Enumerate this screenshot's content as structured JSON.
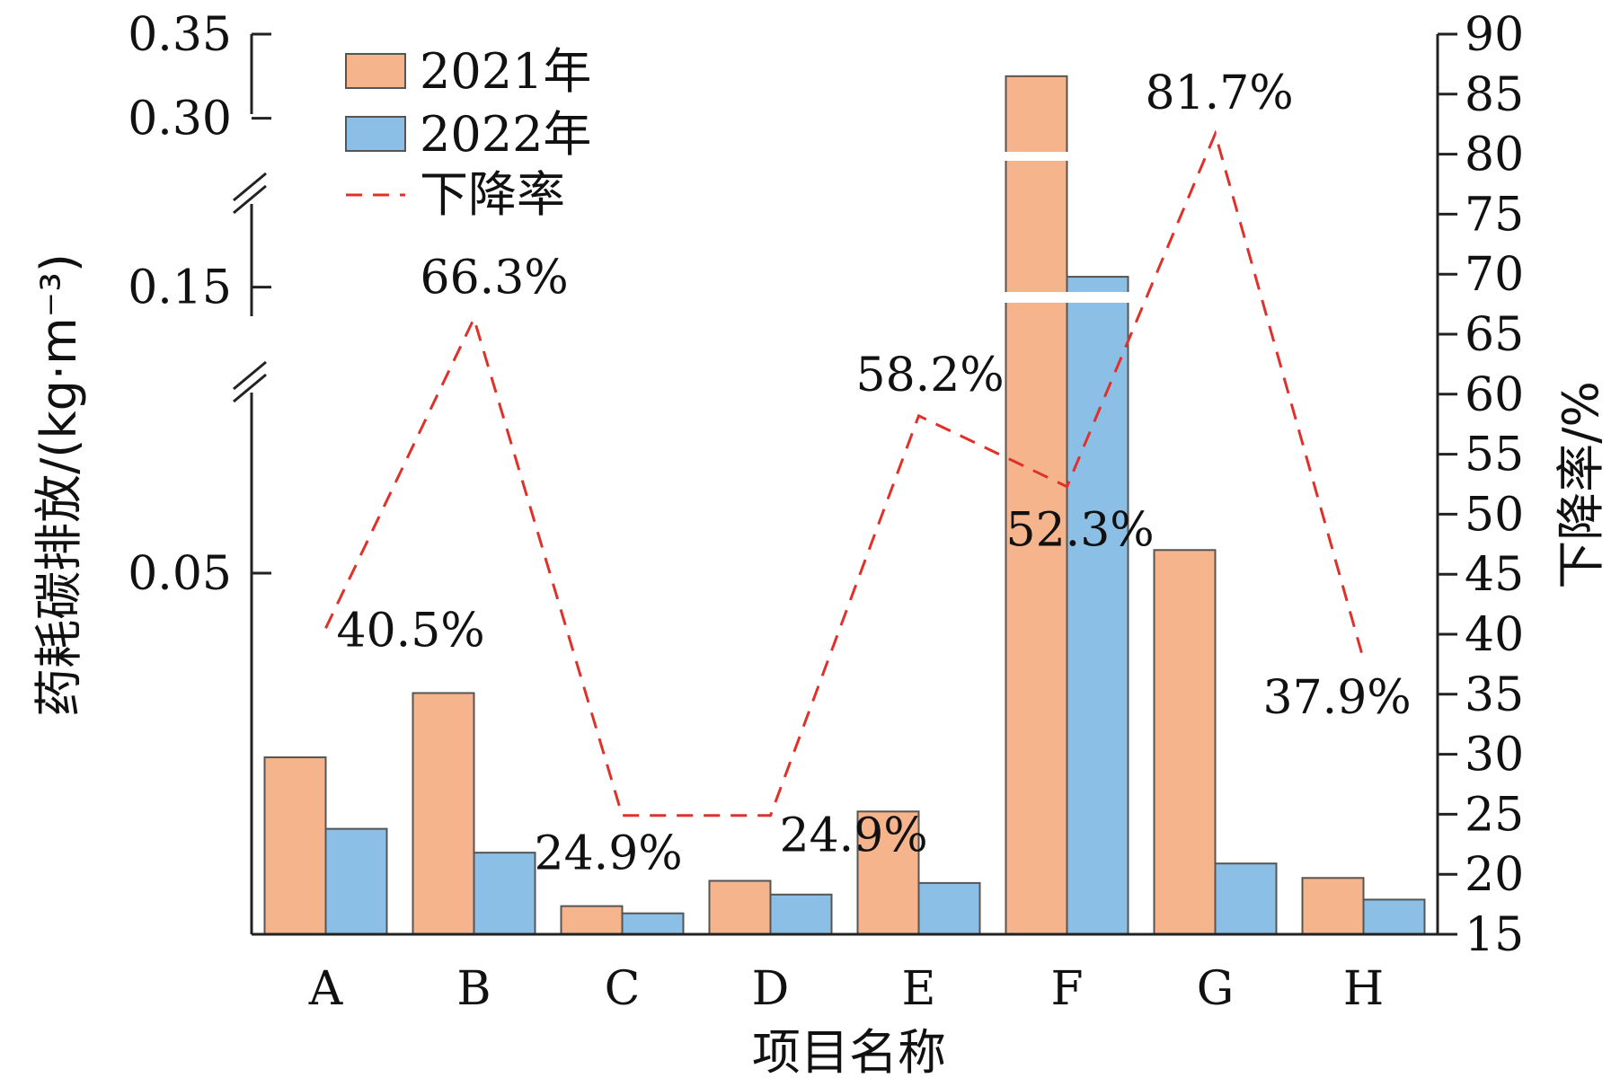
{
  "chart_data": {
    "type": "bar",
    "categories": [
      "A",
      "B",
      "C",
      "D",
      "E",
      "F",
      "G",
      "H"
    ],
    "series": [
      {
        "name": "2021年",
        "color": "#f5b48c",
        "values": [
          0.0245,
          0.0334,
          0.0039,
          0.0074,
          0.017,
          0.325,
          0.0532,
          0.0078
        ]
      },
      {
        "name": "2022年",
        "color": "#8bbfe6",
        "values": [
          0.0146,
          0.0113,
          0.0029,
          0.0055,
          0.0071,
          0.155,
          0.0098,
          0.0048
        ]
      }
    ],
    "rate": {
      "name": "下降率",
      "color": "#e0302a",
      "values": [
        40.5,
        66.3,
        24.9,
        24.9,
        58.2,
        52.3,
        81.7,
        37.9
      ],
      "labels": [
        "40.5%",
        "66.3%",
        "24.9%",
        "24.9%",
        "58.2%",
        "52.3%",
        "81.7%",
        "37.9%"
      ]
    },
    "xlabel": "项目名称",
    "ylabel": "药耗碳排放/(kg·m⁻³)",
    "y2label": "下降率/%",
    "y_ticks": [
      {
        "value": 0.05,
        "label": "0.05"
      },
      {
        "value": 0.15,
        "label": "0.15"
      },
      {
        "value": 0.3,
        "label": "0.30"
      },
      {
        "value": 0.35,
        "label": "0.35"
      }
    ],
    "y_segments": [
      {
        "from": 0,
        "to": 0.075
      },
      {
        "from": 0.13,
        "to": 0.19
      },
      {
        "from": 0.295,
        "to": 0.35
      }
    ],
    "y2_range": [
      15,
      90
    ],
    "y2_ticks": [
      15,
      20,
      25,
      30,
      35,
      40,
      45,
      50,
      55,
      60,
      65,
      70,
      75,
      80,
      85,
      90
    ],
    "legend_position": "top-left"
  }
}
